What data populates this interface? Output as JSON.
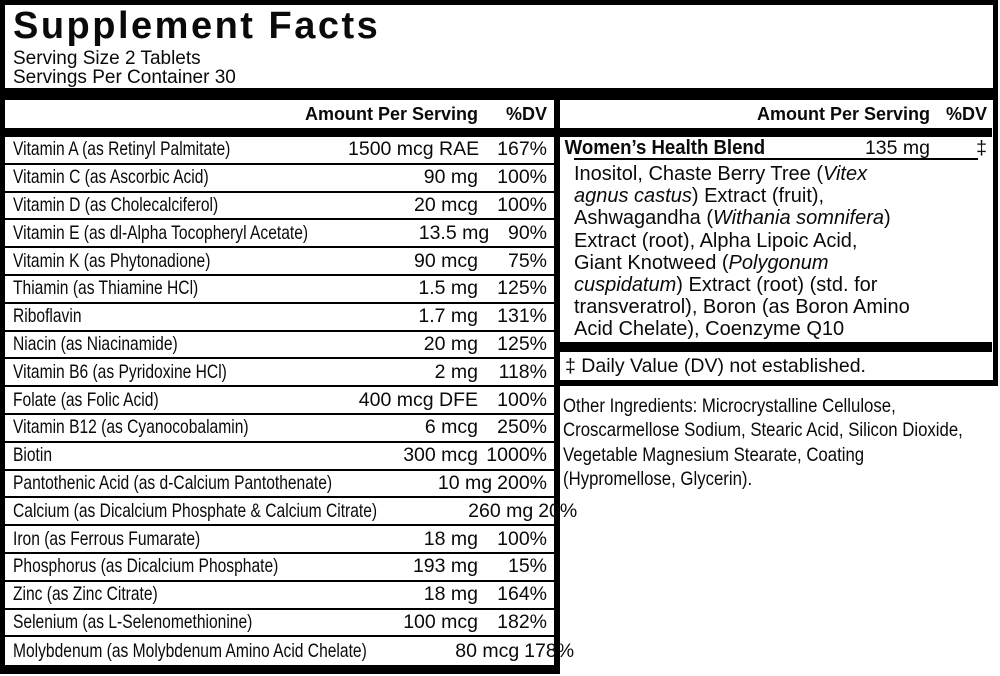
{
  "colors": {
    "ink": "#000000",
    "background": "#ffffff"
  },
  "header": {
    "title": "Supplement Facts",
    "serving_size": "Serving Size 2 Tablets",
    "servings_per_container": "Servings Per Container 30"
  },
  "left_table": {
    "col_amount": "Amount Per Serving",
    "col_dv": "%DV",
    "rows": [
      {
        "name": "Vitamin A (as Retinyl Palmitate)",
        "amount": "1500 mcg RAE",
        "dv": "167%"
      },
      {
        "name": "Vitamin C (as Ascorbic Acid)",
        "amount": "90 mg",
        "dv": "100%"
      },
      {
        "name": "Vitamin D (as Cholecalciferol)",
        "amount": "20 mcg",
        "dv": "100%"
      },
      {
        "name": "Vitamin E (as dl-Alpha Tocopheryl Acetate)",
        "amount": "13.5 mg",
        "dv": "90%"
      },
      {
        "name": "Vitamin K (as Phytonadione)",
        "amount": "90 mcg",
        "dv": "75%"
      },
      {
        "name": "Thiamin (as Thiamine HCl)",
        "amount": "1.5 mg",
        "dv": "125%"
      },
      {
        "name": "Riboflavin",
        "amount": "1.7 mg",
        "dv": "131%"
      },
      {
        "name": "Niacin (as Niacinamide)",
        "amount": "20 mg",
        "dv": "125%"
      },
      {
        "name": "Vitamin B6 (as Pyridoxine HCl)",
        "amount": "2 mg",
        "dv": "118%"
      },
      {
        "name": "Folate (as Folic Acid)",
        "amount": "400 mcg DFE",
        "dv": "100%"
      },
      {
        "name": "Vitamin B12 (as Cyanocobalamin)",
        "amount": "6 mcg",
        "dv": "250%"
      },
      {
        "name": "Biotin",
        "amount": "300 mcg",
        "dv": "1000%"
      },
      {
        "name": "Pantothenic Acid (as d-Calcium Pantothenate)",
        "amount": "10 mg",
        "dv": "200%"
      },
      {
        "name": "Calcium (as Dicalcium Phosphate & Calcium Citrate)",
        "amount": "260 mg",
        "dv": "20%"
      },
      {
        "name": "Iron (as Ferrous Fumarate)",
        "amount": "18 mg",
        "dv": "100%"
      },
      {
        "name": "Phosphorus (as Dicalcium Phosphate)",
        "amount": "193 mg",
        "dv": "15%"
      },
      {
        "name": "Zinc (as Zinc Citrate)",
        "amount": "18 mg",
        "dv": "164%"
      },
      {
        "name": "Selenium (as L-Selenomethionine)",
        "amount": "100 mcg",
        "dv": "182%"
      },
      {
        "name": "Molybdenum (as Molybdenum Amino Acid Chelate)",
        "amount": "80 mcg",
        "dv": "178%"
      }
    ]
  },
  "right_panel": {
    "col_amount": "Amount Per Serving",
    "col_dv": "%DV",
    "blend": {
      "name": "Women’s Health Blend",
      "amount": "135 mg",
      "dv": "‡",
      "description_lines": [
        [
          {
            "t": "Inositol, Chaste Berry Tree ("
          },
          {
            "t": "Vitex",
            "i": true
          }
        ],
        [
          {
            "t": "agnus castus",
            "i": true
          },
          {
            "t": ") Extract (fruit),"
          }
        ],
        [
          {
            "t": "Ashwagandha ("
          },
          {
            "t": "Withania somnifera",
            "i": true
          },
          {
            "t": ")"
          }
        ],
        [
          {
            "t": "Extract (root), Alpha Lipoic Acid,"
          }
        ],
        [
          {
            "t": "Giant Knotweed ("
          },
          {
            "t": "Polygonum",
            "i": true
          }
        ],
        [
          {
            "t": "cuspidatum",
            "i": true
          },
          {
            "t": ") Extract (root) (std. for"
          }
        ],
        [
          {
            "t": "transveratrol), Boron (as Boron Amino"
          }
        ],
        [
          {
            "t": "Acid Chelate), Coenzyme Q10"
          }
        ]
      ]
    },
    "footnote": "‡ Daily Value (DV) not established.",
    "other_ingredients_lines": [
      "Other Ingredients: Microcrystalline Cellulose,",
      "Croscarmellose Sodium, Stearic Acid, Silicon Dioxide,",
      "Vegetable Magnesium Stearate, Coating",
      "(Hypromellose, Glycerin)."
    ]
  }
}
